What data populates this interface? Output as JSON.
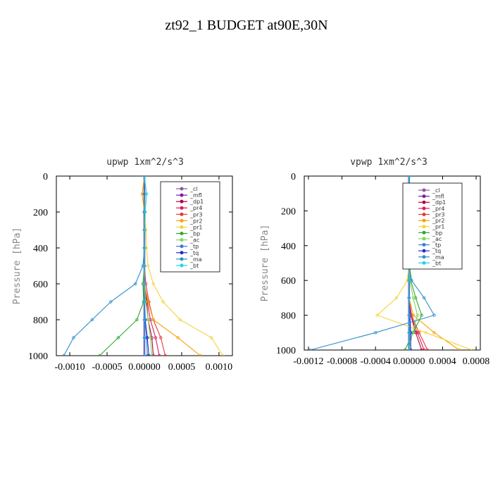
{
  "title": "zt92_1  BUDGET at90E,30N",
  "legend_entries": [
    {
      "name": "_cl",
      "color": "#8a5a9a"
    },
    {
      "name": "_mfl",
      "color": "#7a1fa2"
    },
    {
      "name": "_dp1",
      "color": "#b0003a"
    },
    {
      "name": "_pr4",
      "color": "#d81b60"
    },
    {
      "name": "_pr3",
      "color": "#e53935"
    },
    {
      "name": "_pr2",
      "color": "#f4a300"
    },
    {
      "name": "_pr1",
      "color": "#f2d43a"
    },
    {
      "name": "_bp",
      "color": "#2eaa2e"
    },
    {
      "name": "_ac",
      "color": "#7ed957"
    },
    {
      "name": "_tp",
      "color": "#3a7bd5"
    },
    {
      "name": "_tq",
      "color": "#2a2ad0"
    },
    {
      "name": "_ma",
      "color": "#2f8fc9"
    },
    {
      "name": "_bt",
      "color": "#22d3e6"
    }
  ],
  "chart_data": [
    {
      "type": "line",
      "title": "upwp   1xm^2/s^3",
      "ylabel": "Pressure [hPa]",
      "xlabel": "",
      "xlim": [
        -0.00118,
        0.00118
      ],
      "ylim": [
        1000,
        0
      ],
      "y_ticks": [
        0,
        200,
        400,
        600,
        800,
        1000
      ],
      "x_ticks": [
        -0.001,
        -0.0005,
        0,
        0.0005,
        0.001
      ],
      "x_tick_labels": [
        "-0.0010",
        "-0.0005",
        "0.00000",
        "0.0005",
        "0.0010"
      ],
      "legend_position": "top-right",
      "series": [
        {
          "name": "_cl",
          "x": [
            0,
            0,
            0,
            0,
            0,
            0,
            0,
            0,
            0,
            0,
            0
          ],
          "y": [
            0,
            100,
            200,
            300,
            400,
            500,
            600,
            700,
            800,
            900,
            1000
          ]
        },
        {
          "name": "_mfl",
          "x": [
            0,
            0,
            0,
            0,
            0,
            0,
            0,
            0,
            0,
            0,
            0
          ],
          "y": [
            0,
            100,
            200,
            300,
            400,
            500,
            600,
            700,
            800,
            900,
            1000
          ]
        },
        {
          "name": "_dp1",
          "x": [
            0,
            0,
            0,
            0,
            0,
            0,
            0,
            3e-05,
            5e-05,
            0.0001,
            0.00012
          ],
          "y": [
            0,
            100,
            200,
            300,
            400,
            500,
            600,
            700,
            800,
            900,
            1000
          ]
        },
        {
          "name": "_pr4",
          "x": [
            0,
            0,
            0,
            0,
            0,
            0,
            0,
            4e-05,
            8e-05,
            0.00015,
            0.0002
          ],
          "y": [
            0,
            100,
            200,
            300,
            400,
            500,
            600,
            700,
            800,
            900,
            1000
          ]
        },
        {
          "name": "_pr3",
          "x": [
            0,
            0,
            0,
            0,
            0,
            0,
            2e-05,
            6e-05,
            0.00012,
            0.00022,
            0.00028
          ],
          "y": [
            0,
            100,
            200,
            300,
            400,
            500,
            600,
            700,
            800,
            900,
            1000
          ]
        },
        {
          "name": "_pr2",
          "x": [
            0,
            -3e-05,
            0,
            0,
            0,
            0,
            0,
            5e-05,
            0.00012,
            0.00045,
            0.00075
          ],
          "y": [
            0,
            100,
            200,
            300,
            400,
            500,
            600,
            700,
            800,
            900,
            1000
          ]
        },
        {
          "name": "_pr1",
          "x": [
            0,
            0,
            1e-05,
            2e-05,
            3e-05,
            5e-05,
            0.00012,
            0.00025,
            0.00048,
            0.0009,
            0.00105
          ],
          "y": [
            0,
            100,
            200,
            300,
            400,
            500,
            600,
            700,
            800,
            900,
            1000
          ]
        },
        {
          "name": "_bp",
          "x": [
            0,
            0,
            0,
            0,
            0,
            0,
            -2e-05,
            -1e-05,
            -0.0001,
            -0.00035,
            -0.0006
          ],
          "y": [
            0,
            100,
            200,
            300,
            400,
            500,
            600,
            700,
            800,
            900,
            1000
          ]
        },
        {
          "name": "_ac",
          "x": [
            0,
            0,
            0,
            0,
            0,
            0,
            0,
            2e-05,
            5e-05,
            8e-05,
            0.0001
          ],
          "y": [
            0,
            100,
            200,
            300,
            400,
            500,
            600,
            700,
            800,
            900,
            1000
          ]
        },
        {
          "name": "_tp",
          "x": [
            0,
            0,
            0,
            0,
            0,
            0,
            0,
            0,
            1e-05,
            3e-05,
            4e-05
          ],
          "y": [
            0,
            100,
            200,
            300,
            400,
            500,
            600,
            700,
            800,
            900,
            1000
          ]
        },
        {
          "name": "_tq",
          "x": [
            0,
            0,
            0,
            0,
            0,
            0,
            0,
            0,
            1e-05,
            4e-05,
            6e-05
          ],
          "y": [
            0,
            100,
            200,
            300,
            400,
            500,
            600,
            700,
            800,
            900,
            1000
          ]
        },
        {
          "name": "_ma",
          "x": [
            0,
            0,
            0,
            0,
            0,
            -2e-05,
            -0.00012,
            -0.00045,
            -0.0007,
            -0.00095,
            -0.00108
          ],
          "y": [
            0,
            100,
            200,
            300,
            400,
            500,
            600,
            700,
            800,
            900,
            1000
          ]
        },
        {
          "name": "_bt",
          "x": [
            0,
            3e-05,
            1e-05,
            0,
            0,
            0,
            0,
            0,
            0,
            0,
            0
          ],
          "y": [
            0,
            100,
            200,
            300,
            400,
            500,
            600,
            700,
            800,
            900,
            1000
          ]
        }
      ]
    },
    {
      "type": "line",
      "title": "vpwp   1xm^2/s^3",
      "ylabel": "Pressure [hPa]",
      "xlabel": "",
      "xlim": [
        -0.00125,
        0.00085
      ],
      "ylim": [
        1000,
        0
      ],
      "y_ticks": [
        0,
        200,
        400,
        600,
        800,
        1000
      ],
      "x_ticks": [
        -0.0012,
        -0.0008,
        -0.0004,
        0,
        0.0004,
        0.0008
      ],
      "x_tick_labels": [
        "-0.0012",
        "-0.0008",
        "-0.0004",
        "0.00000",
        "0.0004",
        "0.0008"
      ],
      "legend_position": "top-right",
      "series": [
        {
          "name": "_cl",
          "x": [
            0,
            0,
            0,
            0,
            0,
            0,
            0,
            0,
            0,
            0,
            0
          ],
          "y": [
            0,
            100,
            200,
            300,
            400,
            500,
            600,
            700,
            800,
            900,
            1000
          ]
        },
        {
          "name": "_mfl",
          "x": [
            0,
            0,
            0,
            0,
            0,
            0,
            0,
            0,
            0,
            0,
            0
          ],
          "y": [
            0,
            100,
            200,
            300,
            400,
            500,
            600,
            700,
            800,
            900,
            1000
          ]
        },
        {
          "name": "_dp1",
          "x": [
            0,
            0,
            0,
            0,
            0,
            0,
            0,
            0,
            2e-05,
            8e-05,
            0.00015
          ],
          "y": [
            0,
            100,
            200,
            300,
            400,
            500,
            600,
            700,
            800,
            900,
            1000
          ]
        },
        {
          "name": "_pr4",
          "x": [
            0,
            0,
            0,
            0,
            0,
            0,
            0,
            0,
            2e-05,
            0.0001,
            0.00018
          ],
          "y": [
            0,
            100,
            200,
            300,
            400,
            500,
            600,
            700,
            800,
            900,
            1000
          ]
        },
        {
          "name": "_pr3",
          "x": [
            0,
            0,
            0,
            0,
            0,
            0,
            0,
            0,
            3e-05,
            0.00012,
            0.00022
          ],
          "y": [
            0,
            100,
            200,
            300,
            400,
            500,
            600,
            700,
            800,
            900,
            1000
          ]
        },
        {
          "name": "_pr2",
          "x": [
            0,
            0,
            -2e-05,
            0,
            0,
            0,
            0,
            0,
            5e-05,
            0.0003,
            0.0006
          ],
          "y": [
            0,
            100,
            200,
            300,
            400,
            500,
            600,
            700,
            800,
            900,
            1000
          ]
        },
        {
          "name": "_pr1",
          "x": [
            0,
            0,
            0,
            0,
            0,
            0,
            -2e-05,
            -0.00015,
            -0.00038,
            0.0002,
            0.00075
          ],
          "y": [
            0,
            100,
            200,
            300,
            400,
            500,
            600,
            700,
            800,
            900,
            1000
          ]
        },
        {
          "name": "_bp",
          "x": [
            0,
            0,
            0,
            0,
            0,
            0,
            2e-05,
            8e-05,
            0.00015,
            5e-05,
            -5e-05
          ],
          "y": [
            0,
            100,
            200,
            300,
            400,
            500,
            600,
            700,
            800,
            900,
            1000
          ]
        },
        {
          "name": "_ac",
          "x": [
            0,
            0,
            0,
            0,
            0,
            0,
            1e-05,
            5e-05,
            0.0001,
            4e-05,
            0
          ],
          "y": [
            0,
            100,
            200,
            300,
            400,
            500,
            600,
            700,
            800,
            900,
            1000
          ]
        },
        {
          "name": "_tp",
          "x": [
            0,
            0,
            0,
            0,
            0,
            0,
            0,
            0,
            1e-05,
            1e-05,
            0
          ],
          "y": [
            0,
            100,
            200,
            300,
            400,
            500,
            600,
            700,
            800,
            900,
            1000
          ]
        },
        {
          "name": "_tq",
          "x": [
            0,
            0,
            0,
            0,
            0,
            0,
            0,
            0,
            1e-05,
            2e-05,
            2e-05
          ],
          "y": [
            0,
            100,
            200,
            300,
            400,
            500,
            600,
            700,
            800,
            900,
            1000
          ]
        },
        {
          "name": "_ma",
          "x": [
            0,
            0,
            0,
            0,
            0,
            0,
            3e-05,
            0.00018,
            0.0003,
            -0.0004,
            -0.00118
          ],
          "y": [
            0,
            100,
            200,
            300,
            400,
            500,
            600,
            700,
            800,
            900,
            1000
          ]
        },
        {
          "name": "_bt",
          "x": [
            0,
            0,
            2e-05,
            0,
            0,
            0,
            0,
            0,
            0,
            0,
            0
          ],
          "y": [
            0,
            100,
            200,
            300,
            400,
            500,
            600,
            700,
            800,
            900,
            1000
          ]
        }
      ]
    }
  ]
}
